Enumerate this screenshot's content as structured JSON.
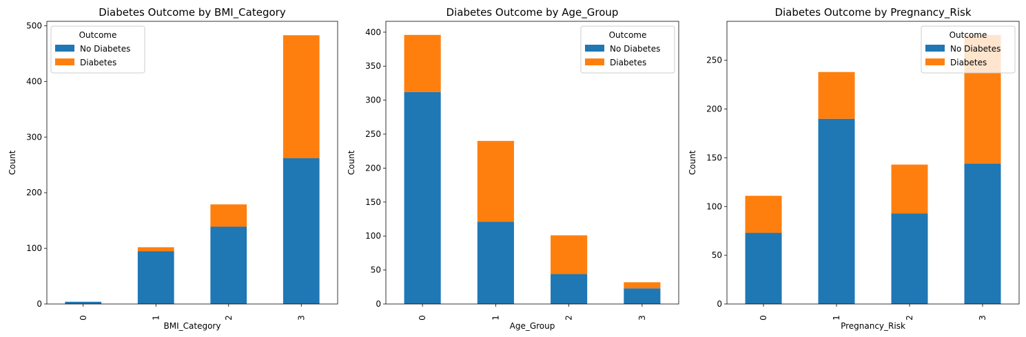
{
  "colors": {
    "no_diabetes": "#1f77b4",
    "diabetes": "#ff7f0e"
  },
  "chart_data": [
    {
      "type": "bar",
      "stacked": true,
      "title": "Diabetes Outcome by BMI_Category",
      "xlabel": "BMI_Category",
      "ylabel": "Count",
      "categories": [
        "0",
        "1",
        "2",
        "3"
      ],
      "ylim": [
        0,
        508
      ],
      "yticks": [
        0,
        100,
        200,
        300,
        400,
        500
      ],
      "series": [
        {
          "name": "No Diabetes",
          "values": [
            4,
            95,
            139,
            262
          ]
        },
        {
          "name": "Diabetes",
          "values": [
            0,
            7,
            40,
            221
          ]
        }
      ],
      "legend": {
        "title": "Outcome",
        "placement": "top-left"
      }
    },
    {
      "type": "bar",
      "stacked": true,
      "title": "Diabetes Outcome by Age_Group",
      "xlabel": "Age_Group",
      "ylabel": "Count",
      "categories": [
        "0",
        "1",
        "2",
        "3"
      ],
      "ylim": [
        0,
        416
      ],
      "yticks": [
        0,
        50,
        100,
        150,
        200,
        250,
        300,
        350,
        400
      ],
      "series": [
        {
          "name": "No Diabetes",
          "values": [
            312,
            121,
            44,
            23
          ]
        },
        {
          "name": "Diabetes",
          "values": [
            84,
            119,
            57,
            9
          ]
        }
      ],
      "legend": {
        "title": "Outcome",
        "placement": "top-right"
      }
    },
    {
      "type": "bar",
      "stacked": true,
      "title": "Diabetes Outcome by Pregnancy_Risk",
      "xlabel": "Pregnancy_Risk",
      "ylabel": "Count",
      "categories": [
        "0",
        "1",
        "2",
        "3"
      ],
      "ylim": [
        0,
        290
      ],
      "yticks": [
        0,
        50,
        100,
        150,
        200,
        250
      ],
      "series": [
        {
          "name": "No Diabetes",
          "values": [
            73,
            190,
            93,
            144
          ]
        },
        {
          "name": "Diabetes",
          "values": [
            38,
            48,
            50,
            132
          ]
        }
      ],
      "legend": {
        "title": "Outcome",
        "placement": "top-right"
      }
    }
  ]
}
